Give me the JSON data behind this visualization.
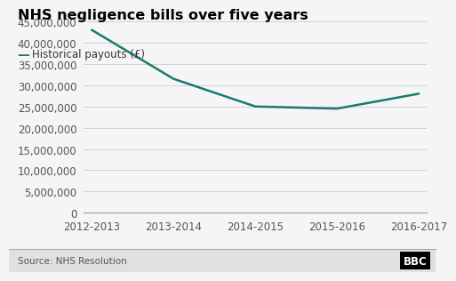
{
  "title": "NHS negligence bills over five years",
  "legend_label": "Historical payouts (£)",
  "source": "Source: NHS Resolution",
  "x_labels": [
    "2012-2013",
    "2013-2014",
    "2014-2015",
    "2015-2016",
    "2016-2017"
  ],
  "x_values": [
    0,
    1,
    2,
    3,
    4
  ],
  "y_values": [
    43000000,
    31500000,
    25000000,
    24500000,
    28000000
  ],
  "line_color": "#1a7a6e",
  "ylim": [
    0,
    47500000
  ],
  "yticks": [
    0,
    5000000,
    10000000,
    15000000,
    20000000,
    25000000,
    30000000,
    35000000,
    40000000,
    45000000
  ],
  "background_color": "#f5f5f5",
  "plot_bg_color": "#f5f5f5",
  "grid_color": "#cccccc",
  "title_fontsize": 11.5,
  "axis_fontsize": 8.5,
  "legend_fontsize": 8.5,
  "source_fontsize": 7.5,
  "line_width": 1.8,
  "footer_line_color": "#aaaaaa",
  "footer_bg_color": "#e0e0e0"
}
